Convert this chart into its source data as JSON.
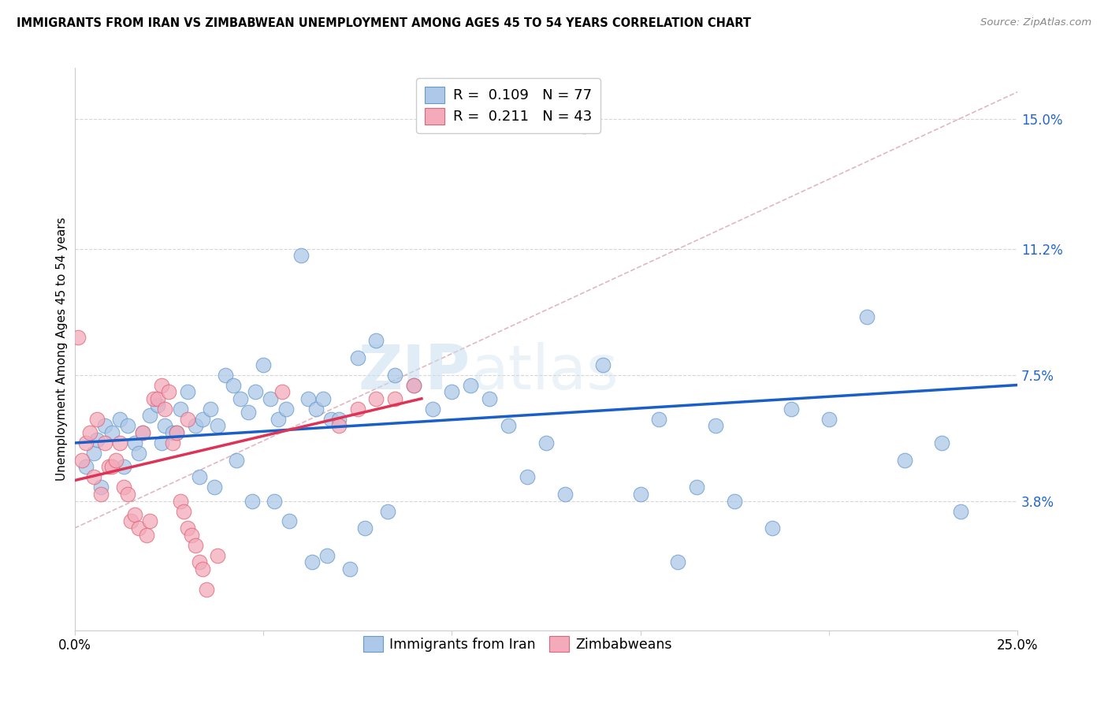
{
  "title": "IMMIGRANTS FROM IRAN VS ZIMBABWEAN UNEMPLOYMENT AMONG AGES 45 TO 54 YEARS CORRELATION CHART",
  "source": "Source: ZipAtlas.com",
  "ylabel": "Unemployment Among Ages 45 to 54 years",
  "xlim": [
    0.0,
    0.25
  ],
  "ylim": [
    0.0,
    0.165
  ],
  "ytick_labels_right": [
    "3.8%",
    "7.5%",
    "11.2%",
    "15.0%"
  ],
  "ytick_positions_right": [
    0.038,
    0.075,
    0.112,
    0.15
  ],
  "blue_color": "#adc8e8",
  "blue_edge_color": "#6699cc",
  "pink_color": "#f4aabb",
  "pink_edge_color": "#dd6677",
  "blue_line_color": "#1a5fc8",
  "pink_line_color": "#dd3355",
  "watermark": "ZIPatlas",
  "blue_scatter_x": [
    0.135,
    0.005,
    0.006,
    0.008,
    0.01,
    0.012,
    0.014,
    0.016,
    0.018,
    0.02,
    0.022,
    0.024,
    0.026,
    0.028,
    0.03,
    0.032,
    0.034,
    0.036,
    0.038,
    0.04,
    0.042,
    0.044,
    0.046,
    0.048,
    0.05,
    0.052,
    0.054,
    0.056,
    0.06,
    0.062,
    0.064,
    0.066,
    0.068,
    0.07,
    0.075,
    0.08,
    0.085,
    0.09,
    0.095,
    0.1,
    0.105,
    0.11,
    0.115,
    0.12,
    0.125,
    0.13,
    0.14,
    0.15,
    0.155,
    0.16,
    0.165,
    0.17,
    0.175,
    0.185,
    0.19,
    0.2,
    0.21,
    0.22,
    0.23,
    0.235,
    0.003,
    0.007,
    0.013,
    0.017,
    0.023,
    0.027,
    0.033,
    0.037,
    0.043,
    0.047,
    0.053,
    0.057,
    0.063,
    0.067,
    0.073,
    0.077,
    0.083
  ],
  "blue_scatter_y": [
    0.148,
    0.052,
    0.056,
    0.06,
    0.058,
    0.062,
    0.06,
    0.055,
    0.058,
    0.063,
    0.066,
    0.06,
    0.058,
    0.065,
    0.07,
    0.06,
    0.062,
    0.065,
    0.06,
    0.075,
    0.072,
    0.068,
    0.064,
    0.07,
    0.078,
    0.068,
    0.062,
    0.065,
    0.11,
    0.068,
    0.065,
    0.068,
    0.062,
    0.062,
    0.08,
    0.085,
    0.075,
    0.072,
    0.065,
    0.07,
    0.072,
    0.068,
    0.06,
    0.045,
    0.055,
    0.04,
    0.078,
    0.04,
    0.062,
    0.02,
    0.042,
    0.06,
    0.038,
    0.03,
    0.065,
    0.062,
    0.092,
    0.05,
    0.055,
    0.035,
    0.048,
    0.042,
    0.048,
    0.052,
    0.055,
    0.058,
    0.045,
    0.042,
    0.05,
    0.038,
    0.038,
    0.032,
    0.02,
    0.022,
    0.018,
    0.03,
    0.035
  ],
  "pink_scatter_x": [
    0.001,
    0.002,
    0.003,
    0.004,
    0.005,
    0.006,
    0.007,
    0.008,
    0.009,
    0.01,
    0.011,
    0.012,
    0.013,
    0.014,
    0.015,
    0.016,
    0.017,
    0.018,
    0.019,
    0.02,
    0.021,
    0.022,
    0.023,
    0.024,
    0.025,
    0.026,
    0.027,
    0.028,
    0.029,
    0.03,
    0.031,
    0.032,
    0.033,
    0.034,
    0.035,
    0.055,
    0.07,
    0.075,
    0.08,
    0.085,
    0.09,
    0.03,
    0.038
  ],
  "pink_scatter_y": [
    0.086,
    0.05,
    0.055,
    0.058,
    0.045,
    0.062,
    0.04,
    0.055,
    0.048,
    0.048,
    0.05,
    0.055,
    0.042,
    0.04,
    0.032,
    0.034,
    0.03,
    0.058,
    0.028,
    0.032,
    0.068,
    0.068,
    0.072,
    0.065,
    0.07,
    0.055,
    0.058,
    0.038,
    0.035,
    0.03,
    0.028,
    0.025,
    0.02,
    0.018,
    0.012,
    0.07,
    0.06,
    0.065,
    0.068,
    0.068,
    0.072,
    0.062,
    0.022
  ],
  "blue_line_x0": 0.0,
  "blue_line_x1": 0.25,
  "blue_line_y0": 0.055,
  "blue_line_y1": 0.072,
  "pink_line_x0": 0.0,
  "pink_line_x1": 0.092,
  "pink_line_y0": 0.044,
  "pink_line_y1": 0.068,
  "dashed_line_x0": 0.0,
  "dashed_line_x1": 0.25,
  "dashed_line_y0": 0.03,
  "dashed_line_y1": 0.158
}
